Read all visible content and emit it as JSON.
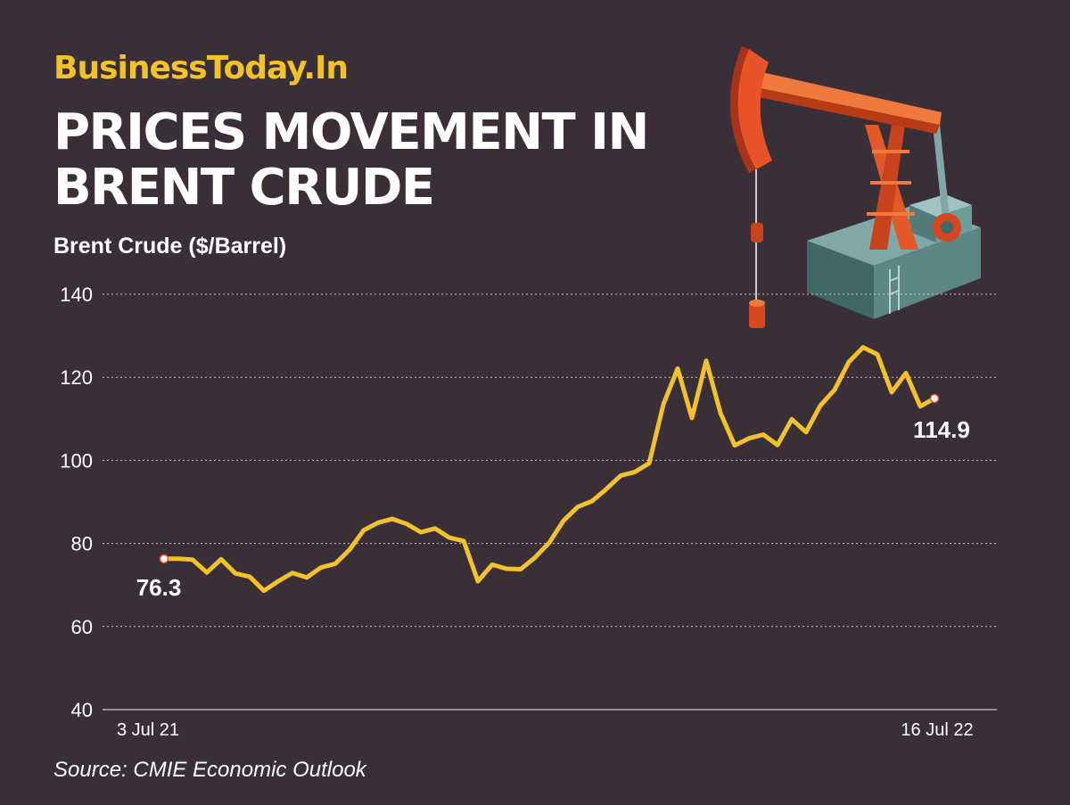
{
  "brand": "BusinessToday.In",
  "title_line1": "PRICES MOVEMENT IN",
  "title_line2": "BRENT CRUDE",
  "source": "Source: CMIE Economic Outlook",
  "colors": {
    "background": "#3a2f37",
    "line": "#f2c22d",
    "brand": "#f2c22d",
    "text": "#ffffff",
    "grid": "#cfc8cc"
  },
  "illustration": "oil-pumpjack-icon",
  "chart_data": {
    "type": "line",
    "title": "Brent Crude ($/Barrel)",
    "ylim": [
      40,
      140
    ],
    "y_ticks": [
      140,
      120,
      100,
      80,
      60,
      40
    ],
    "x_tick_labels": {
      "first": "3 Jul 21",
      "last": "16 Jul 22"
    },
    "grid": "horizontal dotted",
    "series": [
      {
        "values": [
          76.3,
          76.3,
          76.1,
          73.0,
          76.2,
          72.8,
          72.0,
          68.6,
          70.9,
          72.9,
          71.8,
          74.2,
          75.1,
          78.5,
          83.2,
          85.0,
          85.9,
          84.7,
          82.7,
          83.6,
          81.4,
          80.6,
          70.9,
          74.9,
          73.9,
          73.8,
          76.6,
          80.2,
          85.5,
          88.8,
          90.2,
          93.1,
          96.3,
          97.2,
          99.3,
          113.5,
          122.1,
          110.2,
          124.0,
          111.4,
          103.6,
          105.3,
          106.2,
          103.7,
          109.9,
          106.8,
          113.2,
          117.0,
          123.7,
          127.2,
          125.5,
          116.4,
          121.0,
          113.0,
          114.9
        ]
      }
    ],
    "annotations": [
      {
        "text": "76.3",
        "at": "first"
      },
      {
        "text": "114.9",
        "at": "last"
      }
    ]
  }
}
